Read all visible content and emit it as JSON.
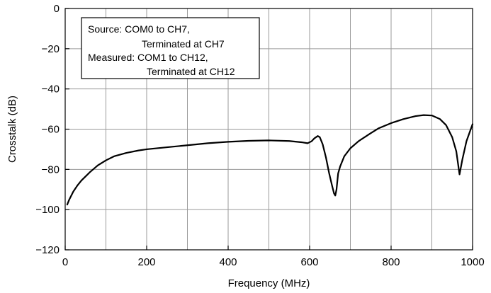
{
  "chart_data": {
    "type": "line",
    "title": "",
    "xlabel": "Frequency (MHz)",
    "ylabel": "Crosstalk (dB)",
    "xlim": [
      0,
      1000
    ],
    "ylim": [
      -120,
      0
    ],
    "xticks": [
      0,
      200,
      400,
      600,
      800,
      1000
    ],
    "yticks": [
      0,
      -20,
      -40,
      -60,
      -80,
      -100,
      -120
    ],
    "xgrid_step": 100,
    "ygrid_step": 20,
    "grid": true,
    "legend_position": "top-left",
    "legend_lines": [
      "Source: COM0 to CH7,",
      "Terminated at CH7",
      "Measured: COM1 to CH12,",
      "Terminated at CH12"
    ],
    "series": [
      {
        "x": [
          5,
          10,
          20,
          30,
          40,
          50,
          60,
          80,
          100,
          120,
          150,
          180,
          200,
          250,
          300,
          350,
          400,
          450,
          500,
          550,
          580,
          595,
          605,
          612,
          620,
          625,
          632,
          640,
          648,
          655,
          660,
          663,
          666,
          670,
          675,
          685,
          700,
          720,
          750,
          770,
          800,
          830,
          860,
          880,
          900,
          920,
          935,
          950,
          960,
          968,
          975,
          985,
          1000
        ],
        "y": [
          -97.5,
          -95,
          -91,
          -88,
          -85.5,
          -83.5,
          -81.5,
          -78,
          -75.5,
          -73.5,
          -71.8,
          -70.6,
          -70,
          -69,
          -68,
          -67,
          -66.3,
          -65.8,
          -65.6,
          -65.9,
          -66.5,
          -67,
          -66,
          -64.5,
          -63.4,
          -64,
          -67.5,
          -74,
          -82,
          -88,
          -92,
          -93,
          -90,
          -82,
          -78.5,
          -73.5,
          -69.5,
          -66,
          -62,
          -59.5,
          -57,
          -55,
          -53.5,
          -53,
          -53.2,
          -55,
          -58,
          -64,
          -71,
          -82.5,
          -75,
          -66,
          -57.5
        ]
      }
    ]
  }
}
